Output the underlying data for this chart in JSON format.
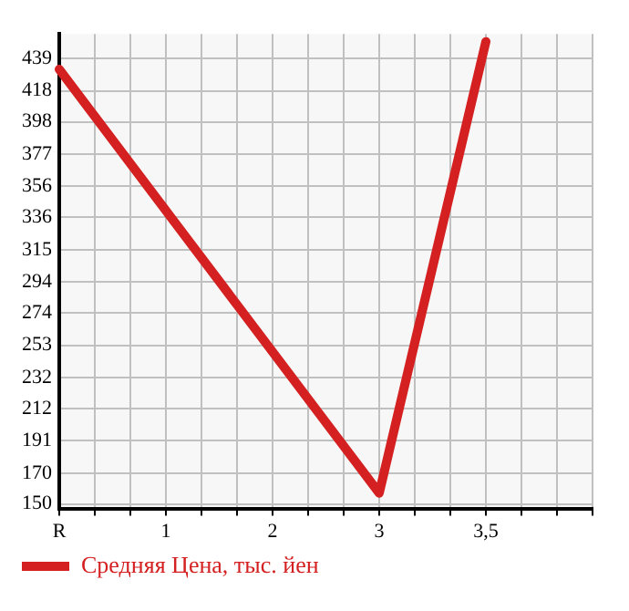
{
  "chart_data": {
    "type": "line",
    "categories": [
      "R",
      null,
      null,
      "1",
      null,
      null,
      "2",
      null,
      null,
      "3",
      null,
      null,
      "3,5",
      null,
      null,
      null
    ],
    "series": [
      {
        "name": "Средняя Цена, тыс. йен",
        "color": "#d42020",
        "values": [
          432,
          null,
          null,
          null,
          null,
          null,
          null,
          null,
          null,
          157,
          null,
          null,
          450,
          null,
          null,
          null
        ]
      }
    ],
    "ylim": [
      147,
      455
    ],
    "yticks": [
      150,
      170,
      191,
      212,
      232,
      253,
      274,
      294,
      315,
      336,
      356,
      377,
      398,
      418,
      439
    ],
    "grid": true,
    "legend": "bottom left",
    "marker": "none",
    "line_style": "solid"
  }
}
